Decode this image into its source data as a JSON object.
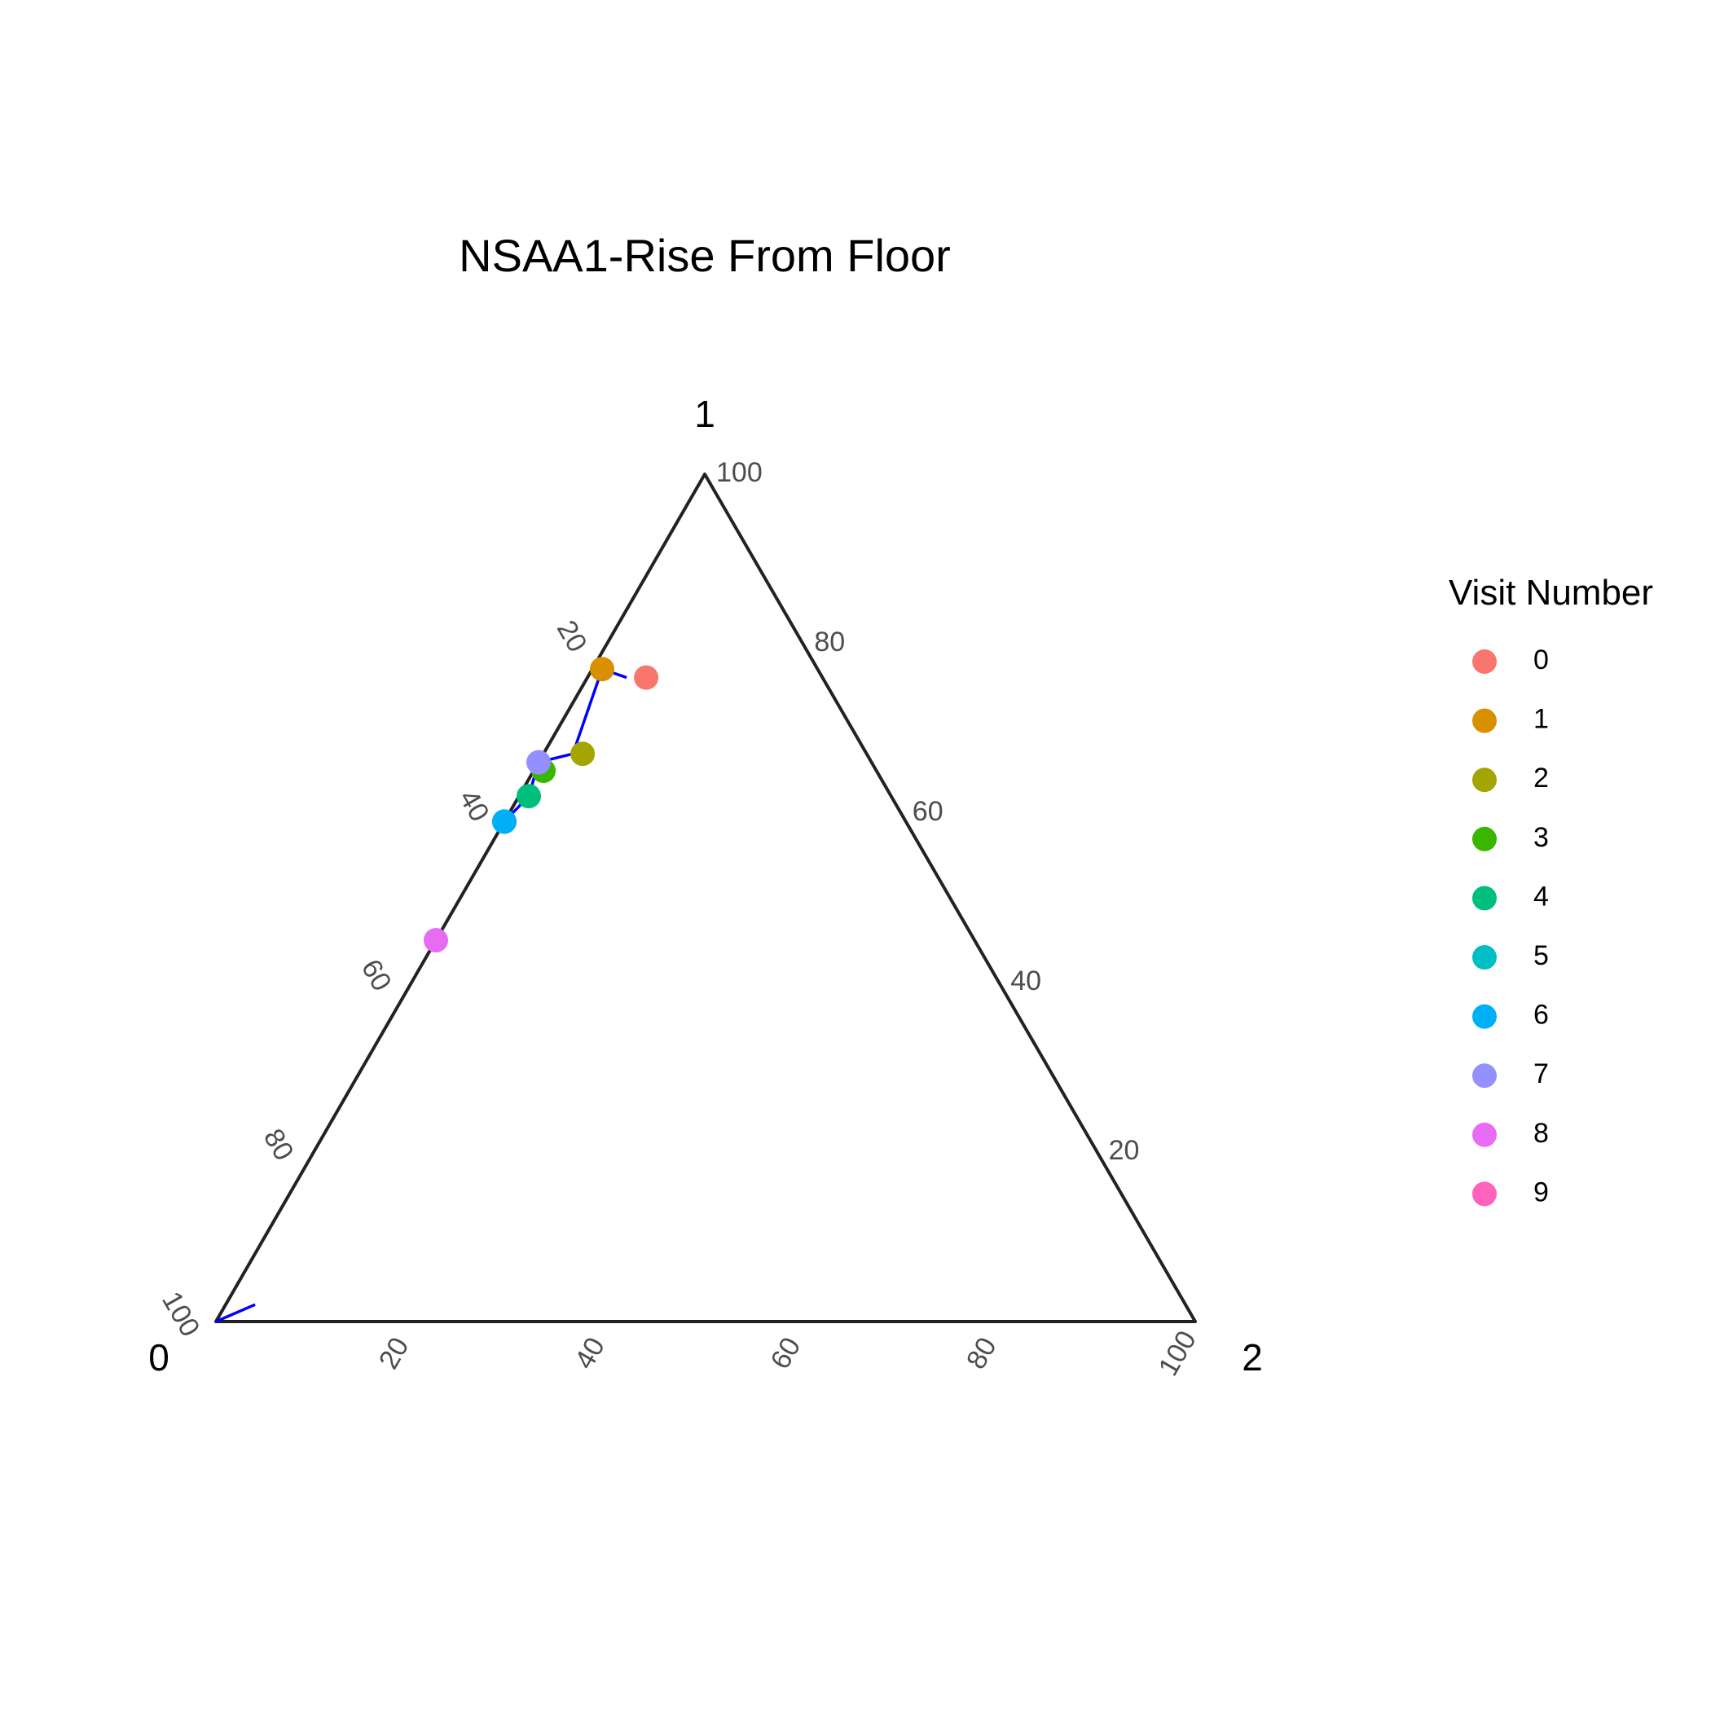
{
  "chart_data": {
    "type": "scatter",
    "subtype": "ternary",
    "title": "NSAA1-Rise From Floor",
    "axes": {
      "a": {
        "label": "0",
        "corner": "bottom-left"
      },
      "b": {
        "label": "1",
        "corner": "top"
      },
      "c": {
        "label": "2",
        "corner": "bottom-right"
      },
      "range": [
        0,
        100
      ],
      "ticks": [
        "20",
        "40",
        "60",
        "80",
        "100"
      ]
    },
    "legend": {
      "title": "Visit Number",
      "placement": "right",
      "entries": [
        {
          "label": "0",
          "color": "#F8766D"
        },
        {
          "label": "1",
          "color": "#D89000"
        },
        {
          "label": "2",
          "color": "#A3A500"
        },
        {
          "label": "3",
          "color": "#39B600"
        },
        {
          "label": "4",
          "color": "#00BF7D"
        },
        {
          "label": "5",
          "color": "#00BFC4"
        },
        {
          "label": "6",
          "color": "#00B0F6"
        },
        {
          "label": "7",
          "color": "#9590FF"
        },
        {
          "label": "8",
          "color": "#E76BF3"
        },
        {
          "label": "9",
          "color": "#FF62BC"
        }
      ]
    },
    "points": [
      {
        "visit": "0",
        "a": 18,
        "b": 76,
        "c": 6
      },
      {
        "visit": "1",
        "a": 22,
        "b": 77,
        "c": 1
      },
      {
        "visit": "2",
        "a": 29,
        "b": 67,
        "c": 4
      },
      {
        "visit": "3",
        "a": 34,
        "b": 65,
        "c": 1
      },
      {
        "visit": "4",
        "a": 37,
        "b": 62,
        "c": 1
      },
      {
        "visit": "5",
        "a": 41,
        "b": 59,
        "c": 0
      },
      {
        "visit": "6",
        "a": 41,
        "b": 59,
        "c": 0
      },
      {
        "visit": "7",
        "a": 34,
        "b": 66,
        "c": 0
      },
      {
        "visit": "8",
        "a": 55,
        "b": 45,
        "c": 0
      }
    ],
    "trend_line": {
      "color": "#0000FF",
      "points": [
        {
          "a": 20,
          "b": 76,
          "c": 4
        },
        {
          "a": 22,
          "b": 77,
          "c": 1
        },
        {
          "a": 30,
          "b": 67,
          "c": 3
        },
        {
          "a": 34,
          "b": 66,
          "c": 0
        },
        {
          "a": 37,
          "b": 62,
          "c": 1
        },
        {
          "a": 41,
          "b": 59,
          "c": 0
        }
      ]
    },
    "corner_segment": {
      "color": "#0000FF",
      "points": [
        {
          "a": 100,
          "b": 0,
          "c": 0
        },
        {
          "a": 95,
          "b": 2,
          "c": 3
        }
      ]
    },
    "grid": false
  }
}
